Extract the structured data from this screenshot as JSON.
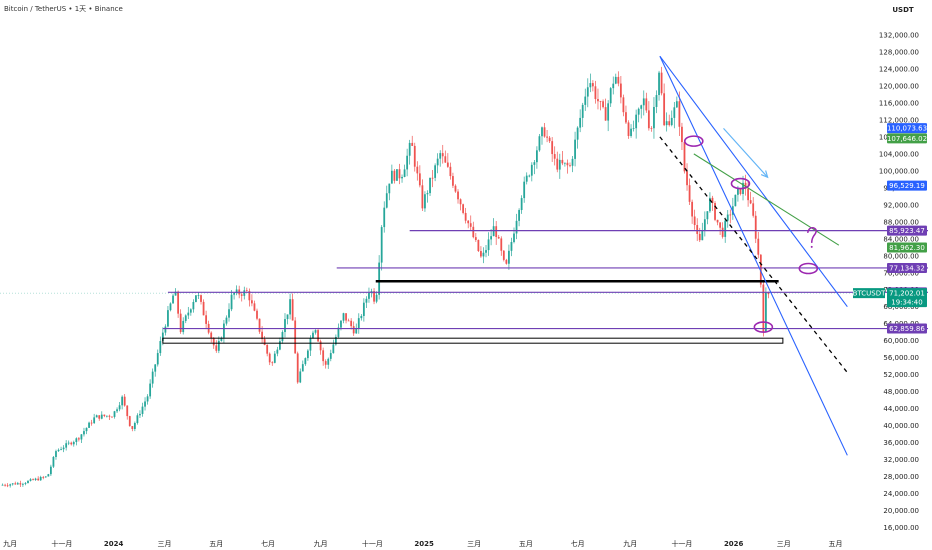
{
  "header": {
    "symbol_title": "Bitcoin / TetherUS • 1天 • Binance",
    "currency_unit": "USDT"
  },
  "chart_data": {
    "type": "candlestick",
    "y_axis": {
      "ylim": [
        14000,
        136000
      ],
      "ticks": [
        16000,
        20000,
        24000,
        28000,
        32000,
        36000,
        40000,
        44000,
        48000,
        52000,
        56000,
        60000,
        64000,
        68000,
        72000,
        76000,
        80000,
        84000,
        88000,
        92000,
        96000,
        100000,
        104000,
        108000,
        112000,
        116000,
        120000,
        124000,
        128000,
        132000
      ],
      "tick_labels": [
        "16,000.00",
        "20,000.00",
        "24,000.00",
        "28,000.00",
        "32,000.00",
        "36,000.00",
        "40,000.00",
        "44,000.00",
        "48,000.00",
        "52,000.00",
        "56,000.00",
        "60,000.00",
        "64,000.00",
        "68,000.00",
        "72,000.00",
        "76,000.00",
        "80,000.00",
        "84,000.00",
        "88,000.00",
        "92,000.00",
        "96,000.00",
        "100,000.00",
        "104,000.00",
        "108,000.00",
        "112,000.00",
        "116,000.00",
        "120,000.00",
        "124,000.00",
        "128,000.00",
        "132,000.00"
      ]
    },
    "x_axis": {
      "ticks": [
        {
          "date": "2023-09-01",
          "label": "九月",
          "bold": false
        },
        {
          "date": "2023-11-01",
          "label": "十一月",
          "bold": false
        },
        {
          "date": "2024-01-01",
          "label": "2024",
          "bold": true
        },
        {
          "date": "2024-03-01",
          "label": "三月",
          "bold": false
        },
        {
          "date": "2024-05-01",
          "label": "五月",
          "bold": false
        },
        {
          "date": "2024-07-01",
          "label": "七月",
          "bold": false
        },
        {
          "date": "2024-09-01",
          "label": "九月",
          "bold": false
        },
        {
          "date": "2024-11-01",
          "label": "十一月",
          "bold": false
        },
        {
          "date": "2025-01-01",
          "label": "2025",
          "bold": true
        },
        {
          "date": "2025-03-01",
          "label": "三月",
          "bold": false
        },
        {
          "date": "2025-05-01",
          "label": "五月",
          "bold": false
        },
        {
          "date": "2025-07-01",
          "label": "七月",
          "bold": false
        },
        {
          "date": "2025-09-01",
          "label": "九月",
          "bold": false
        },
        {
          "date": "2025-11-01",
          "label": "十一月",
          "bold": false
        },
        {
          "date": "2026-01-01",
          "label": "2026",
          "bold": true
        },
        {
          "date": "2026-03-01",
          "label": "三月",
          "bold": false
        },
        {
          "date": "2026-05-01",
          "label": "五月",
          "bold": false
        }
      ],
      "xlim": [
        "2023-08-20",
        "2026-06-06"
      ]
    },
    "price_path": [
      [
        "2023-08-20",
        26000
      ],
      [
        "2023-09-15",
        26500
      ],
      [
        "2023-10-15",
        28000
      ],
      [
        "2023-10-25",
        34000
      ],
      [
        "2023-11-20",
        37000
      ],
      [
        "2023-12-10",
        42000
      ],
      [
        "2023-12-31",
        42500
      ],
      [
        "2024-01-11",
        46500
      ],
      [
        "2024-01-22",
        39000
      ],
      [
        "2024-02-10",
        47000
      ],
      [
        "2024-02-28",
        62000
      ],
      [
        "2024-03-13",
        72000
      ],
      [
        "2024-03-20",
        62500
      ],
      [
        "2024-04-08",
        71500
      ],
      [
        "2024-04-20",
        64000
      ],
      [
        "2024-05-01",
        57000
      ],
      [
        "2024-05-20",
        71000
      ],
      [
        "2024-06-07",
        71500
      ],
      [
        "2024-06-25",
        60000
      ],
      [
        "2024-07-05",
        54000
      ],
      [
        "2024-07-28",
        69500
      ],
      [
        "2024-08-05",
        50000
      ],
      [
        "2024-08-25",
        64000
      ],
      [
        "2024-09-06",
        53500
      ],
      [
        "2024-09-28",
        66000
      ],
      [
        "2024-10-12",
        62000
      ],
      [
        "2024-10-29",
        72500
      ],
      [
        "2024-11-05",
        69000
      ],
      [
        "2024-11-13",
        90000
      ],
      [
        "2024-11-22",
        99000
      ],
      [
        "2024-12-05",
        99000
      ],
      [
        "2024-12-17",
        106500
      ],
      [
        "2024-12-30",
        92000
      ],
      [
        "2025-01-20",
        104000
      ],
      [
        "2025-02-03",
        98000
      ],
      [
        "2025-02-25",
        86000
      ],
      [
        "2025-03-10",
        79000
      ],
      [
        "2025-03-25",
        87000
      ],
      [
        "2025-04-07",
        76500
      ],
      [
        "2025-04-25",
        94000
      ],
      [
        "2025-05-22",
        110000
      ],
      [
        "2025-06-05",
        101500
      ],
      [
        "2025-06-22",
        101000
      ],
      [
        "2025-07-14",
        122000
      ],
      [
        "2025-08-02",
        112500
      ],
      [
        "2025-08-14",
        123000
      ],
      [
        "2025-09-01",
        108000
      ],
      [
        "2025-09-18",
        117000
      ],
      [
        "2025-09-25",
        109000
      ],
      [
        "2025-10-06",
        125500
      ],
      [
        "2025-10-10",
        110000
      ],
      [
        "2025-10-27",
        115500
      ],
      [
        "2025-11-04",
        100000
      ],
      [
        "2025-11-21",
        82000
      ],
      [
        "2025-12-03",
        93500
      ],
      [
        "2025-12-18",
        85000
      ],
      [
        "2026-01-05",
        94500
      ],
      [
        "2026-01-14",
        97000
      ],
      [
        "2026-01-25",
        88000
      ],
      [
        "2026-02-01",
        77000
      ],
      [
        "2026-02-05",
        63000
      ],
      [
        "2026-02-08",
        70500
      ],
      [
        "2026-02-12",
        71200
      ]
    ],
    "horizontal_levels": [
      {
        "value": 85923.47,
        "label": "85,923.47",
        "color": "#6f3fb4",
        "style": "line",
        "from": "2024-12-15"
      },
      {
        "value": 77134.32,
        "label": "77,134.32",
        "color": "#6f3fb4",
        "style": "line",
        "from": "2024-09-20"
      },
      {
        "value": 71393.5,
        "label": "71,393.50",
        "color": "#6f3fb4",
        "style": "line",
        "from": "2024-03-05"
      },
      {
        "value": 62859.86,
        "label": "62,859.86",
        "color": "#6f3fb4",
        "style": "line",
        "from": "2024-02-28"
      },
      {
        "value": 74000,
        "label": "",
        "color": "#000000",
        "style": "thick",
        "from": "2024-11-05",
        "to": "2026-02-23"
      },
      {
        "value": 60000,
        "label": "",
        "color": "#000000",
        "style": "box",
        "from": "2024-02-28",
        "to": "2026-02-28"
      }
    ],
    "price_tags": [
      {
        "value": 110073.63,
        "label": "110,073.63",
        "color": "#2962ff"
      },
      {
        "value": 107646.02,
        "label": "107,646.02",
        "color": "#43a047"
      },
      {
        "value": 96529.19,
        "label": "96,529.19",
        "color": "#2962ff"
      },
      {
        "value": 85923.47,
        "label": "85,923.47",
        "color": "#6f3fb4"
      },
      {
        "value": 81962.3,
        "label": "81,962.30",
        "color": "#43a047"
      },
      {
        "value": 77134.32,
        "label": "77,134.32",
        "color": "#6f3fb4"
      },
      {
        "value": 71393.5,
        "label": "71,393.50",
        "color": "#6f3fb4"
      },
      {
        "value": 62859.86,
        "label": "62,859.86",
        "color": "#6f3fb4"
      }
    ],
    "last_price": {
      "symbol": "BTCUSDT",
      "value": 71202.01,
      "label": "71,202.01",
      "countdown": "19:34:40",
      "color": "#089981"
    },
    "trend_lines": [
      {
        "from": [
          "2025-10-06",
          127000
        ],
        "to": [
          "2026-05-15",
          33000
        ],
        "color": "#2962ff"
      },
      {
        "from": [
          "2025-10-06",
          127000
        ],
        "to": [
          "2026-05-15",
          68000
        ],
        "color": "#2962ff"
      },
      {
        "from": [
          "2025-11-15",
          104000
        ],
        "to": [
          "2026-05-05",
          82500
        ],
        "color": "#43a047"
      },
      {
        "from": [
          "2025-10-06",
          108000
        ],
        "to": [
          "2026-05-15",
          52500
        ],
        "color": "#000000",
        "dashed": true
      }
    ],
    "annotations": [
      {
        "kind": "ellipse",
        "at": [
          "2025-11-15",
          107000
        ],
        "color": "#9c27b0"
      },
      {
        "kind": "ellipse",
        "at": [
          "2026-01-09",
          97000
        ],
        "color": "#9c27b0"
      },
      {
        "kind": "ellipse",
        "at": [
          "2026-02-05",
          63200
        ],
        "color": "#9c27b0"
      },
      {
        "kind": "ellipse",
        "at": [
          "2026-03-30",
          77000
        ],
        "color": "#9c27b0"
      },
      {
        "kind": "question",
        "at": [
          "2026-04-03",
          83500
        ],
        "color": "#9c27b0"
      },
      {
        "kind": "arrow",
        "from": [
          "2025-12-20",
          110000
        ],
        "to": [
          "2026-02-10",
          98500
        ],
        "color": "#64b5f6"
      }
    ],
    "grid": false
  }
}
